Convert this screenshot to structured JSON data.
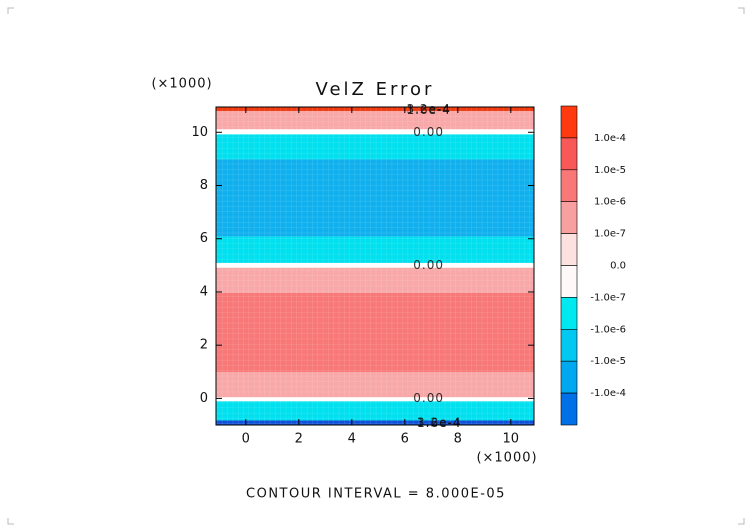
{
  "chart_data": {
    "type": "contour",
    "title": "VelZ Error",
    "subtitle": "CONTOUR INTERVAL = 8.000E-05",
    "x_multiplier": "(×1000)",
    "y_multiplier": "(×1000)",
    "xlim": [
      -1.125,
      10.875
    ],
    "ylim": [
      -1.0,
      10.95
    ],
    "xticks": [
      0,
      2,
      4,
      6,
      8,
      10
    ],
    "yticks": [
      0,
      2,
      4,
      6,
      8,
      10
    ],
    "bands": [
      {
        "from": 10.79,
        "to": 10.95,
        "color": "#f03a10"
      },
      {
        "from": 10.11,
        "to": 10.79,
        "color": "#f8a8a8"
      },
      {
        "from": 9.92,
        "to": 10.11,
        "color": "#ffffff"
      },
      {
        "from": 8.98,
        "to": 9.92,
        "color": "#00e0ee"
      },
      {
        "from": 6.08,
        "to": 8.98,
        "color": "#10b0ee"
      },
      {
        "from": 5.09,
        "to": 6.08,
        "color": "#00e0ee"
      },
      {
        "from": 4.91,
        "to": 5.09,
        "color": "#ffffff"
      },
      {
        "from": 3.96,
        "to": 4.91,
        "color": "#f8a8a8"
      },
      {
        "from": 0.98,
        "to": 3.96,
        "color": "#f87878"
      },
      {
        "from": 0.04,
        "to": 0.98,
        "color": "#f8a8a8"
      },
      {
        "from": -0.11,
        "to": 0.04,
        "color": "#ffffff"
      },
      {
        "from": -0.83,
        "to": -0.11,
        "color": "#00e0ee"
      },
      {
        "from": -1.0,
        "to": -0.83,
        "color": "#1050d8"
      }
    ],
    "contour_labels": [
      {
        "x": 6.9,
        "y": 10.85,
        "label": "3.2e-4"
      },
      {
        "x": 6.9,
        "y": 10.82,
        "label": "1.6e-4"
      },
      {
        "x": 6.9,
        "y": 10.0,
        "label": "0.00"
      },
      {
        "x": 6.9,
        "y": 5.0,
        "label": "0.00"
      },
      {
        "x": 6.9,
        "y": 0.0,
        "label": "0.00"
      },
      {
        "x": 7.3,
        "y": -0.92,
        "label": "3.2e-4"
      },
      {
        "x": 7.3,
        "y": -0.95,
        "label": "1.6e-4"
      }
    ],
    "colorbar": {
      "colors": [
        "#ff3a10",
        "#f85858",
        "#f87878",
        "#f8a0a0",
        "#fde0e0",
        "#fff8f8",
        "#00e8f0",
        "#00c8f0",
        "#00a8f0",
        "#0070e8"
      ],
      "labels": [
        {
          "value": 0.0001,
          "label": "1.0e-4"
        },
        {
          "value": 1e-05,
          "label": "1.0e-5"
        },
        {
          "value": 1e-06,
          "label": "1.0e-6"
        },
        {
          "value": 1e-07,
          "label": "1.0e-7"
        },
        {
          "value": 0,
          "label": "0.0"
        },
        {
          "value": -1e-07,
          "label": "-1.0e-7"
        },
        {
          "value": -1e-06,
          "label": "-1.0e-6"
        },
        {
          "value": -1e-05,
          "label": "-1.0e-5"
        },
        {
          "value": -0.0001,
          "label": "-1.0e-4"
        }
      ]
    }
  }
}
